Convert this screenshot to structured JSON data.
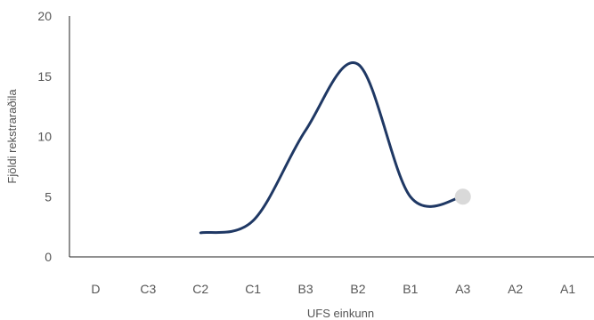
{
  "chart_data": {
    "type": "line",
    "title": "",
    "xlabel": "UFS einkunn",
    "ylabel": "Fjöldi rekstraraðila",
    "categories": [
      "D",
      "C3",
      "C2",
      "C1",
      "B3",
      "B2",
      "B1",
      "A3",
      "A2",
      "A1"
    ],
    "series": [
      {
        "values": [
          null,
          null,
          2,
          3,
          10.5,
          16,
          5,
          5,
          null,
          null
        ]
      }
    ],
    "ylim": [
      0,
      20
    ],
    "yticks": [
      0,
      5,
      10,
      15,
      20
    ],
    "grid": false,
    "legend": "none",
    "colors": {
      "line": "#1f3864",
      "end_marker": "#d9d9d9",
      "axis": "#222222",
      "text": "#555555"
    }
  }
}
